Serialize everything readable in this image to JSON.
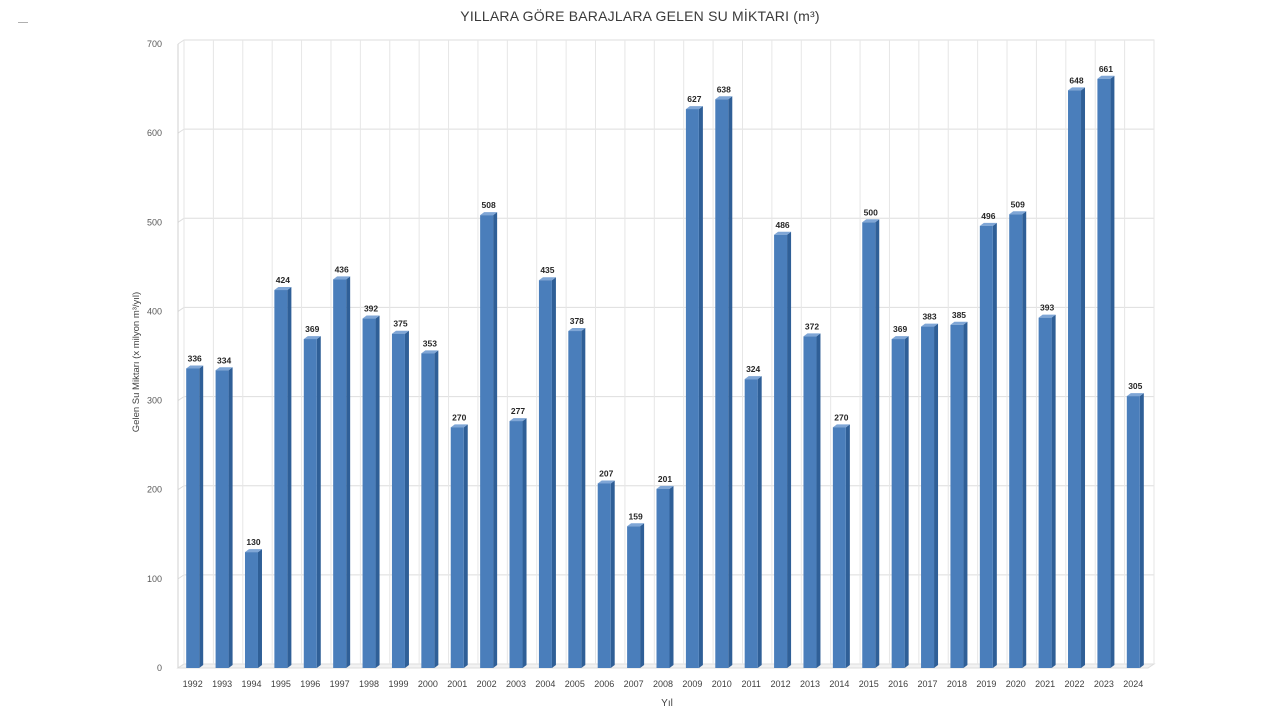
{
  "chart_data": {
    "type": "bar",
    "title": "YILLARA GÖRE BARAJLARA GELEN SU MİKTARI (m³)",
    "xlabel": "Yıl",
    "ylabel": "Gelen Su Miktarı (x milyon m³/yıl)",
    "ylim": [
      0,
      700
    ],
    "yticks": [
      0,
      100,
      200,
      300,
      400,
      500,
      600,
      700
    ],
    "grid": true,
    "legend": "none",
    "bar_color": "#4a7ebb",
    "categories": [
      "1992",
      "1993",
      "1994",
      "1995",
      "1996",
      "1997",
      "1998",
      "1999",
      "2000",
      "2001",
      "2002",
      "2003",
      "2004",
      "2005",
      "2006",
      "2007",
      "2008",
      "2009",
      "2010",
      "2011",
      "2012",
      "2013",
      "2014",
      "2015",
      "2016",
      "2017",
      "2018",
      "2019",
      "2020",
      "2021",
      "2022",
      "2023",
      "2024"
    ],
    "values": [
      336,
      334,
      130,
      424,
      369,
      436,
      392,
      375,
      353,
      270,
      508,
      277,
      435,
      378,
      207,
      159,
      201,
      627,
      638,
      324,
      486,
      372,
      270,
      500,
      369,
      383,
      385,
      496,
      509,
      393,
      648,
      661,
      305
    ]
  }
}
